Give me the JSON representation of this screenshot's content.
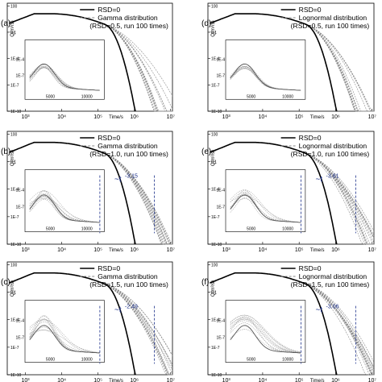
{
  "chart_data": [
    {
      "panel": "(a)",
      "type": "line",
      "xscale": "log",
      "yscale": "log",
      "xlabel": "Time/s",
      "ylabel": "Q(m³/s)",
      "xticks": [
        "10³",
        "10⁴",
        "10⁵",
        "10⁶",
        "10⁷"
      ],
      "yticks": [
        "100",
        "0.1",
        "1E-4",
        "1E-7",
        "1E-10"
      ],
      "legend": [
        "RSD=0",
        "Gamma distribution",
        "(RSD=0.5, run 100 times)"
      ],
      "rsd": 0.5,
      "runs": 100,
      "distribution": "Gamma",
      "tail_slope_label": "",
      "inset_xticks": [
        "5000",
        "10000"
      ]
    },
    {
      "panel": "(b)",
      "type": "line",
      "xscale": "log",
      "yscale": "log",
      "xlabel": "Time/s",
      "ylabel": "Q(m³/s)",
      "xticks": [
        "10³",
        "10⁴",
        "10⁵",
        "10⁶",
        "10⁷"
      ],
      "yticks": [
        "100",
        "0.1",
        "1E-4",
        "1E-7",
        "1E-10"
      ],
      "legend": [
        "RSD=0",
        "Gamma distribution",
        "(RSD=1.0, run 100 times)"
      ],
      "rsd": 1.0,
      "runs": 100,
      "distribution": "Gamma",
      "tail_slope_label": "~t",
      "tail_slope_exp": "-3.15",
      "inset_xticks": [
        "5000",
        "10000"
      ]
    },
    {
      "panel": "(c)",
      "type": "line",
      "xscale": "log",
      "yscale": "log",
      "xlabel": "Time/s",
      "ylabel": "Q(m³/s)",
      "xticks": [
        "10³",
        "10⁴",
        "10⁵",
        "10⁶",
        "10⁷"
      ],
      "yticks": [
        "100",
        "0.1",
        "1E-4",
        "1E-7",
        "1E-10"
      ],
      "legend": [
        "RSD=0",
        "Gamma distribution",
        "(RSD=1.5, run 100 times)"
      ],
      "rsd": 1.5,
      "runs": 100,
      "distribution": "Gamma",
      "tail_slope_label": "~t",
      "tail_slope_exp": "-2.49",
      "inset_xticks": [
        "5000",
        "10000"
      ]
    },
    {
      "panel": "(d)",
      "type": "line",
      "xscale": "log",
      "yscale": "log",
      "xlabel": "Time/s",
      "ylabel": "Q(m³/s)",
      "xticks": [
        "10³",
        "10⁴",
        "10⁵",
        "10⁶",
        "10⁷"
      ],
      "yticks": [
        "100",
        "0.1",
        "1E-4",
        "1E-7",
        "1E-10"
      ],
      "legend": [
        "RSD=0",
        "Lognormal distribution",
        "(RSD=0.5, run 100 times)"
      ],
      "rsd": 0.5,
      "runs": 100,
      "distribution": "Lognormal",
      "tail_slope_label": "",
      "inset_xticks": [
        "5000",
        "10000"
      ]
    },
    {
      "panel": "(e)",
      "type": "line",
      "xscale": "log",
      "yscale": "log",
      "xlabel": "Time/s",
      "ylabel": "Q(m³/s)",
      "xticks": [
        "10³",
        "10⁴",
        "10⁵",
        "10⁶",
        "10⁷"
      ],
      "yticks": [
        "100",
        "0.1",
        "1E-4",
        "1E-7",
        "1E-10"
      ],
      "legend": [
        "RSD=0",
        "Lognormal distribution",
        "(RSD=1.0, run 100 times)"
      ],
      "rsd": 1.0,
      "runs": 100,
      "distribution": "Lognormal",
      "tail_slope_label": "~t",
      "tail_slope_exp": "-3.81",
      "inset_xticks": [
        "5000",
        "10000"
      ]
    },
    {
      "panel": "(f)",
      "type": "line",
      "xscale": "log",
      "yscale": "log",
      "xlabel": "Time/s",
      "ylabel": "Q(m³/s)",
      "xticks": [
        "10³",
        "10⁴",
        "10⁵",
        "10⁶",
        "10⁷"
      ],
      "yticks": [
        "100",
        "0.1",
        "1E-4",
        "1E-7",
        "1E-10"
      ],
      "legend": [
        "RSD=0",
        "Lognormal distribution",
        "(RSD=1.5, run 100 times)"
      ],
      "rsd": 1.5,
      "runs": 100,
      "distribution": "Lognormal",
      "tail_slope_label": "~t",
      "tail_slope_exp": "-3.06",
      "inset_xticks": [
        "5000",
        "10000"
      ]
    }
  ],
  "colors": {
    "rsd0_line": "#000000",
    "ensemble_line": "#8a8a8a",
    "slope_marker": "#1a2f8a"
  }
}
